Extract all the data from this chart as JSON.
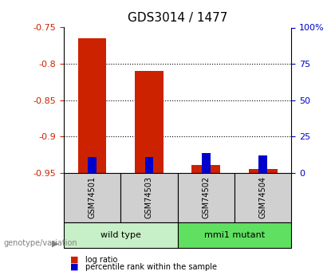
{
  "title": "GDS3014 / 1477",
  "samples": [
    "GSM74501",
    "GSM74503",
    "GSM74502",
    "GSM74504"
  ],
  "log_ratios": [
    -0.765,
    -0.81,
    -0.94,
    -0.945
  ],
  "percentile_ranks": [
    10.5,
    11.0,
    13.5,
    12.0
  ],
  "ylim_left": [
    -0.95,
    -0.75
  ],
  "ylim_right": [
    0,
    100
  ],
  "yticks_left": [
    -0.95,
    -0.9,
    -0.85,
    -0.8,
    -0.75
  ],
  "yticks_right": [
    0,
    25,
    50,
    75,
    100
  ],
  "ytick_labels_left": [
    "-0.95",
    "-0.9",
    "-0.85",
    "-0.8",
    "-0.75"
  ],
  "ytick_labels_right": [
    "0",
    "25",
    "50",
    "75",
    "100%"
  ],
  "groups": [
    {
      "label": "wild type",
      "indices": [
        0,
        1
      ],
      "color": "#c8f0c8"
    },
    {
      "label": "mmi1 mutant",
      "indices": [
        2,
        3
      ],
      "color": "#60e060"
    }
  ],
  "group_label_text": "genotype/variation",
  "bar_color_red": "#cc2200",
  "bar_color_blue": "#0000cc",
  "bar_width": 0.5,
  "bg_color": "#ffffff",
  "label_area_color": "#d0d0d0"
}
